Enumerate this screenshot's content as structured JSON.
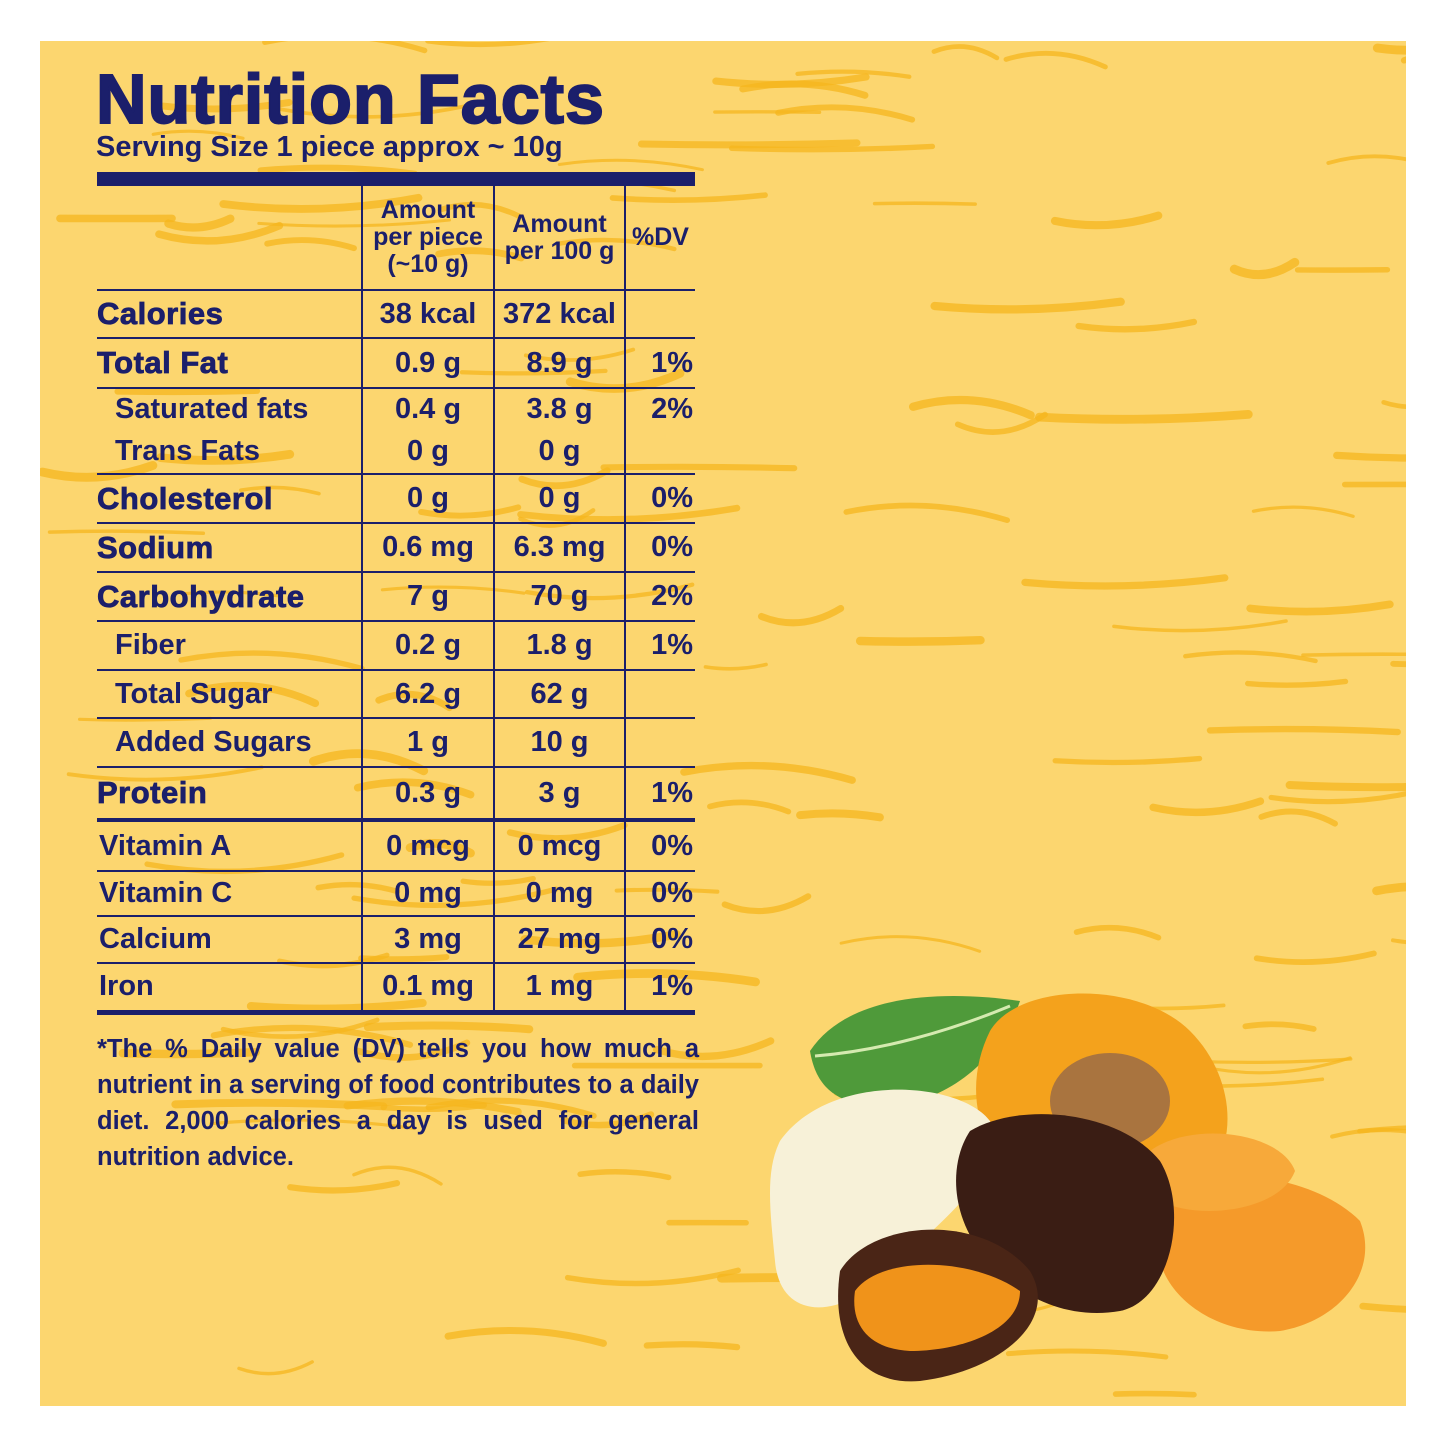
{
  "title": "Nutrition Facts",
  "serving_size": "Serving Size 1 piece approx ~ 10g",
  "columns": [
    "",
    "Amount per piece (~10 g)",
    "Amount per 100 g",
    "%DV"
  ],
  "rows": [
    {
      "label": "Calories",
      "per_piece": "38 kcal",
      "per_100g": "372 kcal",
      "dv": ""
    },
    {
      "label": "Total Fat",
      "per_piece": "0.9 g",
      "per_100g": "8.9 g",
      "dv": "1%"
    },
    {
      "label": "Saturated fats",
      "per_piece": "0.4 g",
      "per_100g": "3.8 g",
      "dv": "2%"
    },
    {
      "label": "Trans Fats",
      "per_piece": "0 g",
      "per_100g": "0 g",
      "dv": ""
    },
    {
      "label": "Cholesterol",
      "per_piece": "0 g",
      "per_100g": "0 g",
      "dv": "0%"
    },
    {
      "label": "Sodium",
      "per_piece": "0.6 mg",
      "per_100g": "6.3 mg",
      "dv": "0%"
    },
    {
      "label": "Carbohydrate",
      "per_piece": "7 g",
      "per_100g": "70 g",
      "dv": "2%"
    },
    {
      "label": "Fiber",
      "per_piece": "0.2 g",
      "per_100g": "1.8 g",
      "dv": "1%"
    },
    {
      "label": "Total Sugar",
      "per_piece": "6.2 g",
      "per_100g": "62 g",
      "dv": ""
    },
    {
      "label": "Added Sugars",
      "per_piece": "1 g",
      "per_100g": "10 g",
      "dv": ""
    },
    {
      "label": "Protein",
      "per_piece": "0.3 g",
      "per_100g": "3 g",
      "dv": "1%"
    },
    {
      "label": "Vitamin A",
      "per_piece": "0 mcg",
      "per_100g": "0 mcg",
      "dv": "0%"
    },
    {
      "label": "Vitamin C",
      "per_piece": "0 mg",
      "per_100g": "0 mg",
      "dv": "0%"
    },
    {
      "label": "Calcium",
      "per_piece": "3 mg",
      "per_100g": "27 mg",
      "dv": "0%"
    },
    {
      "label": "Iron",
      "per_piece": "0.1 mg",
      "per_100g": "1 mg",
      "dv": "1%"
    }
  ],
  "footnote": "*The % Daily value (DV) tells you how much a nutrient in a serving of food contributes to a daily diet. 2,000 calories a day is used for general nutrition advice.",
  "colors": {
    "background": "#fcd66f",
    "texture": "#f5b51e",
    "text": "#1b1f6b"
  },
  "image": "chocolate-covered-dried-apricots"
}
